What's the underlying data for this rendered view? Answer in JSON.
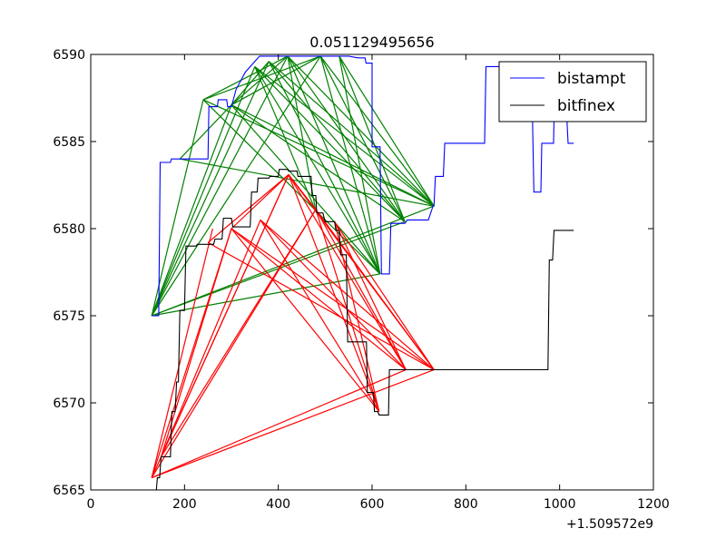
{
  "chart_data": {
    "type": "line",
    "title": "0.051129495656",
    "xlabel": "",
    "ylabel": "",
    "x_offset_label": "+1.509572e9",
    "xlim": [
      0,
      1200
    ],
    "ylim": [
      6565,
      6590
    ],
    "xticks": [
      "0",
      "200",
      "400",
      "600",
      "800",
      "1000",
      "1200"
    ],
    "yticks": [
      "6565",
      "6570",
      "6575",
      "6580",
      "6585",
      "6590"
    ],
    "grid": false,
    "legend_position": "top-right",
    "series": [
      {
        "name": "bistampt",
        "color": "#0000ff",
        "points": [
          [
            130,
            6575
          ],
          [
            145,
            6575
          ],
          [
            148,
            6583.8
          ],
          [
            170,
            6583.8
          ],
          [
            172,
            6584
          ],
          [
            183,
            6584
          ],
          [
            185,
            6584
          ],
          [
            250,
            6584
          ],
          [
            252,
            6587
          ],
          [
            270,
            6587
          ],
          [
            272,
            6587.4
          ],
          [
            290,
            6587.4
          ],
          [
            292,
            6587
          ],
          [
            300,
            6587
          ],
          [
            310,
            6588
          ],
          [
            330,
            6589
          ],
          [
            360,
            6589.9
          ],
          [
            420,
            6589.9
          ],
          [
            490,
            6589.9
          ],
          [
            530,
            6589.9
          ],
          [
            550,
            6589.9
          ],
          [
            570,
            6589.8
          ],
          [
            585,
            6589.8
          ],
          [
            587,
            6589.5
          ],
          [
            600,
            6589.5
          ],
          [
            600,
            6584.7
          ],
          [
            617,
            6584.7
          ],
          [
            620,
            6577.4
          ],
          [
            637,
            6577.4
          ],
          [
            640,
            6580.3
          ],
          [
            670,
            6580.3
          ],
          [
            675,
            6580.5
          ],
          [
            720,
            6580.5
          ],
          [
            730,
            6581.3
          ],
          [
            732,
            6581.3
          ],
          [
            735,
            6583
          ],
          [
            752,
            6583
          ],
          [
            755,
            6584.9
          ],
          [
            830,
            6584.9
          ],
          [
            840,
            6584.9
          ],
          [
            843,
            6589.3
          ],
          [
            930,
            6589.3
          ],
          [
            933,
            6589.3
          ],
          [
            940,
            6589.3
          ],
          [
            945,
            6582.1
          ],
          [
            960,
            6582.1
          ],
          [
            962,
            6584.9
          ],
          [
            985,
            6584.9
          ],
          [
            987,
            6584.9
          ],
          [
            990,
            6589.3
          ],
          [
            1010,
            6589.3
          ],
          [
            1018,
            6584.9
          ],
          [
            1030,
            6584.9
          ]
        ]
      },
      {
        "name": "bitfinex",
        "color": "#000000",
        "points": [
          [
            140,
            6565
          ],
          [
            142,
            6565.7
          ],
          [
            147,
            6565.7
          ],
          [
            150,
            6566.9
          ],
          [
            170,
            6566.9
          ],
          [
            173,
            6569.5
          ],
          [
            180,
            6569.5
          ],
          [
            183,
            6571.2
          ],
          [
            187,
            6571.2
          ],
          [
            190,
            6575.3
          ],
          [
            200,
            6575.3
          ],
          [
            203,
            6579
          ],
          [
            225,
            6579
          ],
          [
            227,
            6579.1
          ],
          [
            262,
            6579.1
          ],
          [
            265,
            6579.4
          ],
          [
            280,
            6579.4
          ],
          [
            283,
            6580.6
          ],
          [
            300,
            6580.6
          ],
          [
            303,
            6580.1
          ],
          [
            340,
            6580.1
          ],
          [
            343,
            6582.1
          ],
          [
            355,
            6582.1
          ],
          [
            357,
            6582.9
          ],
          [
            380,
            6582.9
          ],
          [
            382,
            6583
          ],
          [
            400,
            6583
          ],
          [
            402,
            6583.4
          ],
          [
            420,
            6583.4
          ],
          [
            422,
            6583.3
          ],
          [
            440,
            6583.3
          ],
          [
            442,
            6583
          ],
          [
            470,
            6583
          ],
          [
            472,
            6581.9
          ],
          [
            480,
            6581.9
          ],
          [
            482,
            6580.9
          ],
          [
            495,
            6580.9
          ],
          [
            500,
            6580.4
          ],
          [
            520,
            6580.4
          ],
          [
            523,
            6579.9
          ],
          [
            530,
            6579.9
          ],
          [
            533,
            6578.5
          ],
          [
            545,
            6578.5
          ],
          [
            548,
            6573.5
          ],
          [
            588,
            6573.5
          ],
          [
            590,
            6570.6
          ],
          [
            603,
            6570.6
          ],
          [
            605,
            6569.5
          ],
          [
            612,
            6569.5
          ],
          [
            615,
            6569.3
          ],
          [
            635,
            6569.3
          ],
          [
            637,
            6571.9
          ],
          [
            670,
            6571.9
          ],
          [
            675,
            6571.9
          ],
          [
            730,
            6571.9
          ],
          [
            975,
            6571.9
          ],
          [
            978,
            6578.2
          ],
          [
            985,
            6578.2
          ],
          [
            988,
            6579.9
          ],
          [
            1030,
            6579.9
          ]
        ]
      }
    ],
    "green_segments": [
      [
        [
          130,
          6575
        ],
        [
          240,
          6587.4
        ]
      ],
      [
        [
          130,
          6575
        ],
        [
          300,
          6587.1
        ]
      ],
      [
        [
          130,
          6575
        ],
        [
          350,
          6589.3
        ]
      ],
      [
        [
          130,
          6575
        ],
        [
          380,
          6589.6
        ]
      ],
      [
        [
          130,
          6575
        ],
        [
          420,
          6589.9
        ]
      ],
      [
        [
          130,
          6575
        ],
        [
          490,
          6589.9
        ]
      ],
      [
        [
          130,
          6575
        ],
        [
          617,
          6577.4
        ]
      ],
      [
        [
          130,
          6575
        ],
        [
          670,
          6580.4
        ]
      ],
      [
        [
          130,
          6575
        ],
        [
          732,
          6581.3
        ]
      ],
      [
        [
          190,
          6584
        ],
        [
          300,
          6587.1
        ]
      ],
      [
        [
          190,
          6584
        ],
        [
          730,
          6581.3
        ]
      ],
      [
        [
          240,
          6587.4
        ],
        [
          420,
          6589.9
        ]
      ],
      [
        [
          240,
          6587.4
        ],
        [
          490,
          6589.9
        ]
      ],
      [
        [
          240,
          6587.4
        ],
        [
          617,
          6577.4
        ]
      ],
      [
        [
          240,
          6587.4
        ],
        [
          732,
          6581.3
        ]
      ],
      [
        [
          300,
          6587.1
        ],
        [
          380,
          6589.6
        ]
      ],
      [
        [
          300,
          6587.1
        ],
        [
          420,
          6589.9
        ]
      ],
      [
        [
          300,
          6587.1
        ],
        [
          490,
          6589.9
        ]
      ],
      [
        [
          300,
          6587.1
        ],
        [
          617,
          6577.4
        ]
      ],
      [
        [
          300,
          6587.1
        ],
        [
          670,
          6580.4
        ]
      ],
      [
        [
          300,
          6587.1
        ],
        [
          732,
          6581.3
        ]
      ],
      [
        [
          350,
          6589.3
        ],
        [
          617,
          6577.4
        ]
      ],
      [
        [
          350,
          6589.3
        ],
        [
          670,
          6580.4
        ]
      ],
      [
        [
          350,
          6589.3
        ],
        [
          732,
          6581.3
        ]
      ],
      [
        [
          380,
          6589.6
        ],
        [
          617,
          6577.4
        ]
      ],
      [
        [
          380,
          6589.6
        ],
        [
          670,
          6580.4
        ]
      ],
      [
        [
          380,
          6589.6
        ],
        [
          732,
          6581.3
        ]
      ],
      [
        [
          420,
          6589.9
        ],
        [
          617,
          6577.4
        ]
      ],
      [
        [
          420,
          6589.9
        ],
        [
          670,
          6580.4
        ]
      ],
      [
        [
          420,
          6589.9
        ],
        [
          732,
          6581.3
        ]
      ],
      [
        [
          490,
          6589.9
        ],
        [
          617,
          6577.4
        ]
      ],
      [
        [
          490,
          6589.9
        ],
        [
          670,
          6580.4
        ]
      ],
      [
        [
          490,
          6589.9
        ],
        [
          732,
          6581.3
        ]
      ],
      [
        [
          530,
          6589.9
        ],
        [
          617,
          6577.4
        ]
      ],
      [
        [
          530,
          6589.9
        ],
        [
          670,
          6580.4
        ]
      ],
      [
        [
          530,
          6589.9
        ],
        [
          732,
          6581.3
        ]
      ],
      [
        [
          420,
          6589.9
        ],
        [
          480,
          6581
        ]
      ],
      [
        [
          350,
          6589.3
        ],
        [
          480,
          6581
        ]
      ]
    ],
    "red_segments": [
      [
        [
          130,
          6565.7
        ],
        [
          300,
          6580
        ]
      ],
      [
        [
          130,
          6565.7
        ],
        [
          422,
          6583.1
        ]
      ],
      [
        [
          130,
          6565.7
        ],
        [
          480,
          6581.1
        ]
      ],
      [
        [
          130,
          6565.7
        ],
        [
          672,
          6571.9
        ]
      ],
      [
        [
          130,
          6565.7
        ],
        [
          732,
          6571.9
        ]
      ],
      [
        [
          130,
          6565.7
        ],
        [
          260,
          6580
        ]
      ],
      [
        [
          150,
          6566.9
        ],
        [
          300,
          6580
        ]
      ],
      [
        [
          150,
          6566.9
        ],
        [
          422,
          6583.1
        ]
      ],
      [
        [
          150,
          6566.9
        ],
        [
          480,
          6581.1
        ]
      ],
      [
        [
          150,
          6566.9
        ],
        [
          362,
          6580.5
        ]
      ],
      [
        [
          250,
          6579.2
        ],
        [
          422,
          6583.1
        ]
      ],
      [
        [
          250,
          6579.2
        ],
        [
          732,
          6571.9
        ]
      ],
      [
        [
          300,
          6580
        ],
        [
          422,
          6583.1
        ]
      ],
      [
        [
          300,
          6580
        ],
        [
          615,
          6569.5
        ]
      ],
      [
        [
          300,
          6580
        ],
        [
          672,
          6571.9
        ]
      ],
      [
        [
          300,
          6580
        ],
        [
          732,
          6571.9
        ]
      ],
      [
        [
          362,
          6580.5
        ],
        [
          615,
          6569.5
        ]
      ],
      [
        [
          362,
          6580.5
        ],
        [
          672,
          6571.9
        ]
      ],
      [
        [
          362,
          6580.5
        ],
        [
          732,
          6571.9
        ]
      ],
      [
        [
          422,
          6583.1
        ],
        [
          480,
          6581.1
        ]
      ],
      [
        [
          422,
          6583.1
        ],
        [
          615,
          6569.5
        ]
      ],
      [
        [
          422,
          6583.1
        ],
        [
          672,
          6571.9
        ]
      ],
      [
        [
          422,
          6583.1
        ],
        [
          732,
          6571.9
        ]
      ],
      [
        [
          480,
          6581.1
        ],
        [
          615,
          6569.5
        ]
      ],
      [
        [
          480,
          6581.1
        ],
        [
          672,
          6571.9
        ]
      ],
      [
        [
          480,
          6581.1
        ],
        [
          732,
          6571.9
        ]
      ],
      [
        [
          520,
          6580.4
        ],
        [
          615,
          6569.5
        ]
      ],
      [
        [
          520,
          6580.4
        ],
        [
          672,
          6571.9
        ]
      ],
      [
        [
          520,
          6580.4
        ],
        [
          732,
          6571.9
        ]
      ]
    ]
  }
}
